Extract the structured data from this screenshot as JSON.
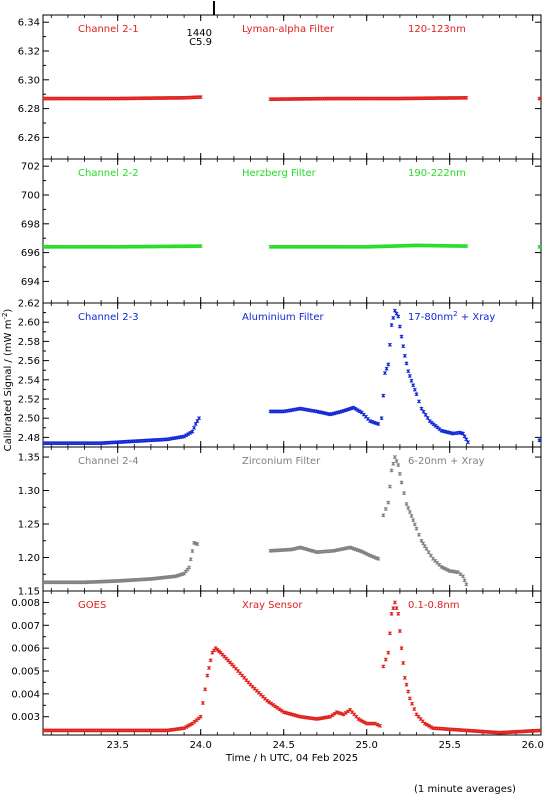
{
  "chart_data": {
    "type": "scatter",
    "ylabel": "Calibrated Signal / (mW m",
    "ylabel_sup": "-2",
    "ylabel_end": ")",
    "xlabel": "Time / h UTC, 04 Feb 2025",
    "footnote": "(1 minute averages)",
    "xlim": [
      23.05,
      26.05
    ],
    "x_ticks": [
      {
        "v": 23.5,
        "label": "23.5"
      },
      {
        "v": 24.0,
        "label": "24.0"
      },
      {
        "v": 24.5,
        "label": "24.5"
      },
      {
        "v": 25.0,
        "label": "25.0"
      },
      {
        "v": 25.5,
        "label": "25.5"
      },
      {
        "v": 26.0,
        "label": "26.0"
      }
    ],
    "flare_marker": {
      "x": 24.08,
      "line1": "1440",
      "line2": "C5.9"
    },
    "panels": [
      {
        "labels": [
          "Channel 2-1",
          "Lyman-alpha Filter",
          "120-123nm"
        ],
        "color": "#e0201c",
        "ylim": [
          6.245,
          6.345
        ],
        "yticks": [
          "6.26",
          "6.28",
          "6.30",
          "6.32",
          "6.34"
        ],
        "ytick_values": [
          6.26,
          6.28,
          6.3,
          6.32,
          6.34
        ],
        "segments": [
          {
            "points": [
              [
                23.05,
                6.287
              ],
              [
                23.5,
                6.287
              ],
              [
                23.9,
                6.2875
              ],
              [
                24.0,
                6.288
              ]
            ]
          },
          {
            "points": [
              [
                24.42,
                6.2865
              ],
              [
                24.8,
                6.287
              ],
              [
                25.2,
                6.287
              ],
              [
                25.6,
                6.2875
              ]
            ]
          },
          {
            "points": [
              [
                26.04,
                6.287
              ],
              [
                26.05,
                6.287
              ]
            ]
          }
        ]
      },
      {
        "labels": [
          "Channel 2-2",
          "Herzberg Filter",
          "190-222nm"
        ],
        "color": "#22dd22",
        "ylim": [
          692.5,
          702.5
        ],
        "yticks": [
          "694",
          "696",
          "698",
          "700",
          "702"
        ],
        "ytick_values": [
          694,
          696,
          698,
          700,
          702
        ],
        "segments": [
          {
            "points": [
              [
                23.05,
                696.4
              ],
              [
                23.5,
                696.4
              ],
              [
                24.0,
                696.45
              ]
            ]
          },
          {
            "points": [
              [
                24.42,
                696.4
              ],
              [
                25.0,
                696.4
              ],
              [
                25.3,
                696.5
              ],
              [
                25.6,
                696.45
              ]
            ]
          },
          {
            "points": [
              [
                26.04,
                696.4
              ],
              [
                26.05,
                696.4
              ]
            ]
          }
        ]
      },
      {
        "labels": [
          "Channel 2-3",
          "Aluminium Filter",
          "17-80nm + Xray"
        ],
        "label_sup": "2",
        "color": "#1228d6",
        "ylim": [
          2.47,
          2.62
        ],
        "yticks": [
          "2.48",
          "2.50",
          "2.52",
          "2.54",
          "2.56",
          "2.58",
          "2.60",
          "2.62"
        ],
        "ytick_values": [
          2.48,
          2.5,
          2.52,
          2.54,
          2.56,
          2.58,
          2.6,
          2.62
        ],
        "segments": [
          {
            "points": [
              [
                23.05,
                2.474
              ],
              [
                23.4,
                2.474
              ],
              [
                23.6,
                2.476
              ],
              [
                23.8,
                2.478
              ],
              [
                23.9,
                2.481
              ],
              [
                23.95,
                2.486
              ],
              [
                23.97,
                2.494
              ],
              [
                23.99,
                2.5
              ]
            ]
          },
          {
            "points": [
              [
                24.42,
                2.507
              ],
              [
                24.5,
                2.507
              ],
              [
                24.6,
                2.51
              ],
              [
                24.7,
                2.507
              ],
              [
                24.78,
                2.504
              ],
              [
                24.85,
                2.507
              ],
              [
                24.92,
                2.511
              ],
              [
                24.97,
                2.506
              ],
              [
                25.02,
                2.497
              ],
              [
                25.07,
                2.494
              ]
            ]
          },
          {
            "points": [
              [
                25.09,
                2.5
              ],
              [
                25.11,
                2.547
              ],
              [
                25.13,
                2.556
              ],
              [
                25.15,
                2.597
              ],
              [
                25.17,
                2.612
              ],
              [
                25.19,
                2.606
              ],
              [
                25.21,
                2.585
              ],
              [
                25.23,
                2.565
              ],
              [
                25.25,
                2.549
              ],
              [
                25.27,
                2.539
              ],
              [
                25.3,
                2.525
              ],
              [
                25.33,
                2.51
              ],
              [
                25.38,
                2.497
              ],
              [
                25.45,
                2.487
              ],
              [
                25.52,
                2.484
              ],
              [
                25.56,
                2.485
              ],
              [
                25.58,
                2.484
              ],
              [
                25.61,
                2.475
              ]
            ]
          },
          {
            "points": [
              [
                26.04,
                2.477
              ],
              [
                26.05,
                2.477
              ]
            ]
          }
        ]
      },
      {
        "labels": [
          "Channel 2-4",
          "Zirconium Filter",
          "6-20nm + Xray"
        ],
        "color": "#808080",
        "ylim": [
          1.15,
          1.365
        ],
        "yticks": [
          "1.15",
          "1.20",
          "1.25",
          "1.30",
          "1.35"
        ],
        "ytick_values": [
          1.15,
          1.2,
          1.25,
          1.3,
          1.35
        ],
        "segments": [
          {
            "points": [
              [
                23.05,
                1.163
              ],
              [
                23.3,
                1.163
              ],
              [
                23.5,
                1.165
              ],
              [
                23.7,
                1.168
              ],
              [
                23.85,
                1.172
              ],
              [
                23.9,
                1.176
              ],
              [
                23.93,
                1.185
              ],
              [
                23.96,
                1.222
              ],
              [
                23.98,
                1.22
              ]
            ]
          },
          {
            "points": [
              [
                24.42,
                1.21
              ],
              [
                24.55,
                1.212
              ],
              [
                24.6,
                1.215
              ],
              [
                24.7,
                1.208
              ],
              [
                24.8,
                1.21
              ],
              [
                24.9,
                1.215
              ],
              [
                24.97,
                1.209
              ],
              [
                25.02,
                1.203
              ],
              [
                25.07,
                1.198
              ]
            ]
          },
          {
            "points": [
              [
                25.1,
                1.263
              ],
              [
                25.13,
                1.282
              ],
              [
                25.15,
                1.33
              ],
              [
                25.17,
                1.35
              ],
              [
                25.19,
                1.338
              ],
              [
                25.21,
                1.312
              ],
              [
                25.24,
                1.28
              ],
              [
                25.27,
                1.262
              ],
              [
                25.3,
                1.243
              ],
              [
                25.33,
                1.225
              ],
              [
                25.36,
                1.213
              ],
              [
                25.4,
                1.198
              ],
              [
                25.45,
                1.186
              ],
              [
                25.5,
                1.18
              ],
              [
                25.55,
                1.178
              ],
              [
                25.58,
                1.172
              ],
              [
                25.6,
                1.16
              ]
            ]
          }
        ]
      },
      {
        "labels": [
          "GOES",
          "Xray Sensor",
          "0.1-0.8nm"
        ],
        "color": "#e0201c",
        "ylim": [
          0.0022,
          0.0085
        ],
        "yticks": [
          "0.003",
          "0.004",
          "0.005",
          "0.006",
          "0.007",
          "0.008"
        ],
        "ytick_values": [
          0.003,
          0.004,
          0.005,
          0.006,
          0.007,
          0.008
        ],
        "segments": [
          {
            "points": [
              [
                23.05,
                0.0024
              ],
              [
                23.5,
                0.0024
              ],
              [
                23.8,
                0.0024
              ],
              [
                23.9,
                0.0025
              ],
              [
                23.95,
                0.0027
              ],
              [
                24.0,
                0.003
              ],
              [
                24.04,
                0.0048
              ],
              [
                24.07,
                0.0058
              ],
              [
                24.09,
                0.006
              ],
              [
                24.12,
                0.0058
              ],
              [
                24.2,
                0.0052
              ],
              [
                24.3,
                0.0044
              ],
              [
                24.4,
                0.0037
              ],
              [
                24.5,
                0.0032
              ],
              [
                24.6,
                0.003
              ],
              [
                24.7,
                0.0029
              ],
              [
                24.78,
                0.003
              ],
              [
                24.82,
                0.0032
              ],
              [
                24.86,
                0.0031
              ],
              [
                24.9,
                0.0033
              ],
              [
                24.95,
                0.0029
              ],
              [
                25.0,
                0.0027
              ],
              [
                25.05,
                0.0027
              ],
              [
                25.08,
                0.0026
              ]
            ]
          },
          {
            "points": [
              [
                25.1,
                0.0052
              ],
              [
                25.13,
                0.0058
              ],
              [
                25.15,
                0.0075
              ],
              [
                25.17,
                0.008
              ],
              [
                25.19,
                0.0075
              ],
              [
                25.21,
                0.006
              ],
              [
                25.23,
                0.0047
              ],
              [
                25.26,
                0.0038
              ],
              [
                25.3,
                0.0031
              ],
              [
                25.35,
                0.0027
              ],
              [
                25.4,
                0.0025
              ],
              [
                25.5,
                0.00245
              ],
              [
                25.6,
                0.0024
              ],
              [
                25.8,
                0.0023
              ],
              [
                26.05,
                0.0024
              ]
            ]
          }
        ]
      }
    ]
  }
}
